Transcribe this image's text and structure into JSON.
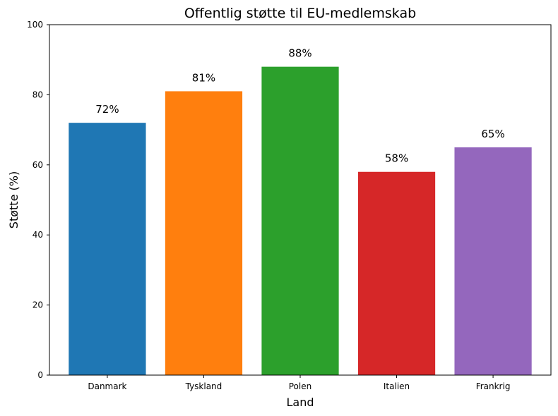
{
  "chart_data": {
    "type": "bar",
    "title": "Offentlig støtte til EU-medlemskab",
    "xlabel": "Land",
    "ylabel": "Støtte (%)",
    "categories": [
      "Danmark",
      "Tyskland",
      "Polen",
      "Italien",
      "Frankrig"
    ],
    "values": [
      72,
      81,
      88,
      58,
      65
    ],
    "data_labels": [
      "72%",
      "81%",
      "88%",
      "58%",
      "65%"
    ],
    "colors": [
      "#1f77b4",
      "#ff7f0e",
      "#2ca02c",
      "#d62728",
      "#9467bd"
    ],
    "ylim": [
      0,
      100
    ],
    "yticks": [
      0,
      20,
      40,
      60,
      80,
      100
    ],
    "grid": false,
    "legend": "none"
  }
}
